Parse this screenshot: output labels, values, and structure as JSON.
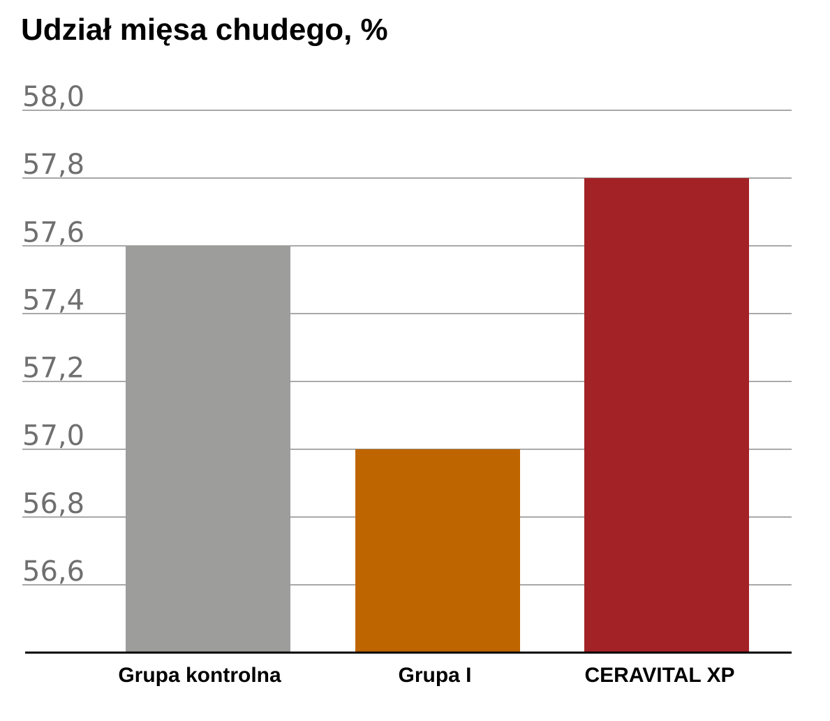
{
  "chart_data": {
    "type": "bar",
    "title": "Udział mięsa chudego, %",
    "categories": [
      "Grupa kontrolna",
      "Grupa I",
      "CERAVITAL XP"
    ],
    "values": [
      57.6,
      57.0,
      57.8
    ],
    "bar_colors": [
      "#9d9d9c",
      "#bf6500",
      "#a32225"
    ],
    "ylim": [
      56.4,
      58.0
    ],
    "y_ticks": [
      56.6,
      56.8,
      57.0,
      57.2,
      57.4,
      57.6,
      57.8,
      58.0
    ],
    "y_tick_labels": [
      "56,6",
      "56,8",
      "57,0",
      "57,2",
      "57,4",
      "57,6",
      "57,8",
      "58,0"
    ],
    "grid": true,
    "gridline_color": "#8c8c8c",
    "tick_label_color": "#6f6f6f",
    "xlabel": "",
    "ylabel": ""
  }
}
